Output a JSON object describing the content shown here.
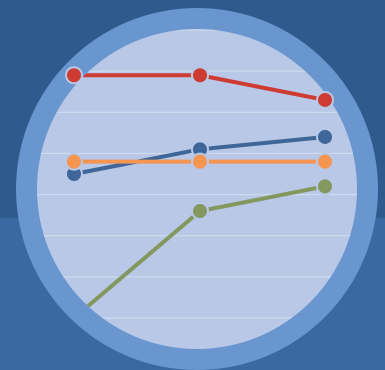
{
  "colors": {
    "background": "#2f5a8e",
    "background_lower": "#3a68a0",
    "ring": "#6a96cf",
    "plot_bg": "#b8c8e6",
    "gridline": "#d4ddef",
    "marker_stroke": "#b8c8e6"
  },
  "chart_data": {
    "type": "line",
    "title": "",
    "xlabel": "",
    "ylabel": "",
    "x": [
      1,
      2,
      3
    ],
    "ylim": [
      0,
      7
    ],
    "grid": true,
    "legend": "none",
    "series": [
      {
        "color": "#cd3b33",
        "values": [
          5.9,
          5.9,
          5.3
        ]
      },
      {
        "color": "#3e6698",
        "values": [
          3.5,
          4.1,
          4.4
        ]
      },
      {
        "color": "#f5954f",
        "values": [
          3.8,
          3.8,
          3.8
        ]
      },
      {
        "color": "#82985e",
        "values": [
          0.0,
          2.6,
          3.2
        ]
      }
    ]
  }
}
